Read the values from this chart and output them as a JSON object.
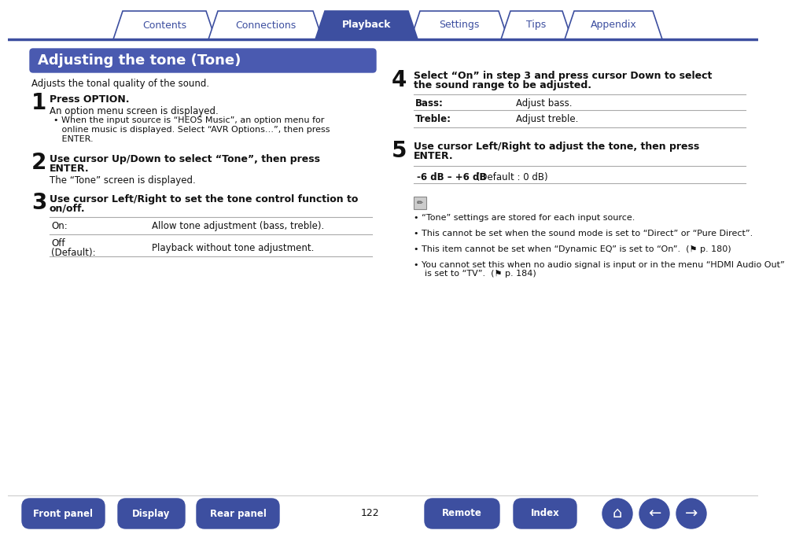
{
  "nav_tabs": [
    "Contents",
    "Connections",
    "Playback",
    "Settings",
    "Tips",
    "Appendix"
  ],
  "nav_active": "Playback",
  "nav_tab_color_active": "#3d4fa0",
  "nav_tab_color_inactive": "#ffffff",
  "nav_text_color_active": "#ffffff",
  "nav_text_color_inactive": "#3d4fa0",
  "nav_border_color": "#3d4fa0",
  "title": "Adjusting the tone (Tone)",
  "title_bg": "#4a5ab0",
  "title_text_color": "#ffffff",
  "subtitle": "Adjusts the tonal quality of the sound.",
  "step1_num": "1",
  "step1_head": "Press OPTION.",
  "step1_body": "An option menu screen is displayed.",
  "step1_bullet": "When the input source is “HEOS Music”, an option menu for\nonline music is displayed. Select “AVR Options…”, then press\nENTER.",
  "step2_num": "2",
  "step2_head": "Use cursor Up/Down to select “Tone”, then press\nENTER.",
  "step2_body": "The “Tone” screen is displayed.",
  "step3_num": "3",
  "step3_head": "Use cursor Left/Right to set the tone control function to\non/off.",
  "step3_table": [
    [
      "On:",
      "Allow tone adjustment (bass, treble)."
    ],
    [
      "Off\n(Default):",
      "Playback without tone adjustment."
    ]
  ],
  "step4_num": "4",
  "step4_head": "Select “On” in step 3 and press cursor Down to select\nthe sound range to be adjusted.",
  "step4_table": [
    [
      "Bass:",
      "Adjust bass."
    ],
    [
      "Treble:",
      "Adjust treble."
    ]
  ],
  "step5_num": "5",
  "step5_head": "Use cursor Left/Right to adjust the tone, then press\nENTER.",
  "step5_range": "-6 dB – +6 dB",
  "step5_default": " (Default : 0 dB)",
  "notes": [
    "“Tone” settings are stored for each input source.",
    "This cannot be set when the sound mode is set to “Direct” or “Pure Direct”.",
    "This item cannot be set when “Dynamic EQ” is set to “On”.  (⚑ p. 180)",
    "You cannot set this when no audio signal is input or in the menu “HDMI Audio Out”\nis set to “TV”.  (⚑ p. 184)"
  ],
  "bottom_buttons": [
    "Front panel",
    "Display",
    "Rear panel",
    "Remote",
    "Index"
  ],
  "page_num": "122",
  "btn_color": "#3d4fa0",
  "btn_text_color": "#ffffff",
  "line_color": "#aaaaaa",
  "body_text_color": "#111111",
  "step_num_color": "#111111",
  "bold_color": "#111111",
  "bg_color": "#ffffff"
}
